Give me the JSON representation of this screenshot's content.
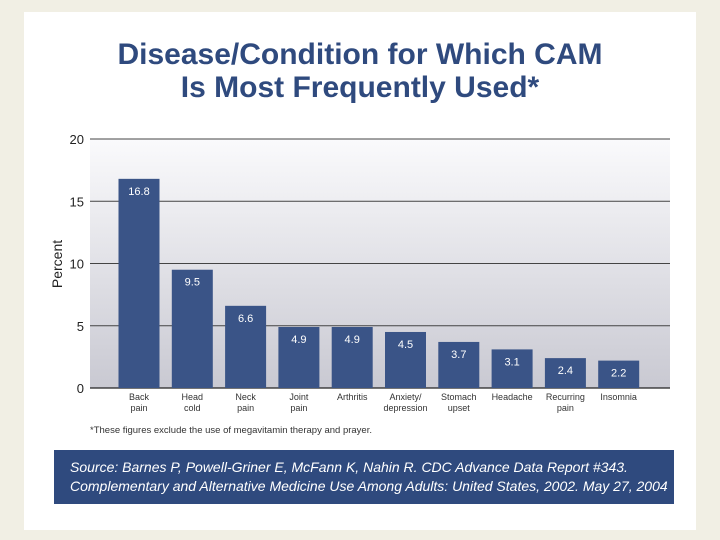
{
  "title_lines": [
    "Disease/Condition for Which CAM",
    "Is Most Frequently Used*"
  ],
  "chart_data": {
    "type": "bar",
    "title": "Disease/Condition for Which CAM Is Most Frequently Used*",
    "categories": [
      [
        "Back",
        "pain"
      ],
      [
        "Head",
        "cold"
      ],
      [
        "Neck",
        "pain"
      ],
      [
        "Joint",
        "pain"
      ],
      [
        "Arthritis"
      ],
      [
        "Anxiety/",
        "depression"
      ],
      [
        "Stomach",
        "upset"
      ],
      [
        "Headache"
      ],
      [
        "Recurring",
        "pain"
      ],
      [
        "Insomnia"
      ]
    ],
    "values": [
      16.8,
      9.5,
      6.6,
      4.9,
      4.9,
      4.5,
      3.7,
      3.1,
      2.4,
      2.2
    ],
    "value_labels": [
      "16.8",
      "9.5",
      "6.6",
      "4.9",
      "4.9",
      "4.5",
      "3.7",
      "3.1",
      "2.4",
      "2.2"
    ],
    "xlabel": "",
    "ylabel": "Percent",
    "ylim": [
      0,
      20
    ],
    "yticks": [
      0,
      5,
      10,
      15,
      20
    ],
    "grid": true,
    "legend": "none",
    "bar_color": "#3a5487"
  },
  "footnote": "*These figures exclude the use of megavitamin therapy and prayer.",
  "source_lines": [
    "Source: Barnes P, Powell-Griner E, McFann K, Nahin R. CDC Advance Data Report #343.",
    "Complementary and Alternative Medicine Use Among Adults: United States, 2002. May 27, 2004"
  ],
  "colors": {
    "title": "#2f4a7e",
    "bar": "#3a5487",
    "source_bg": "#2f4a7e"
  }
}
